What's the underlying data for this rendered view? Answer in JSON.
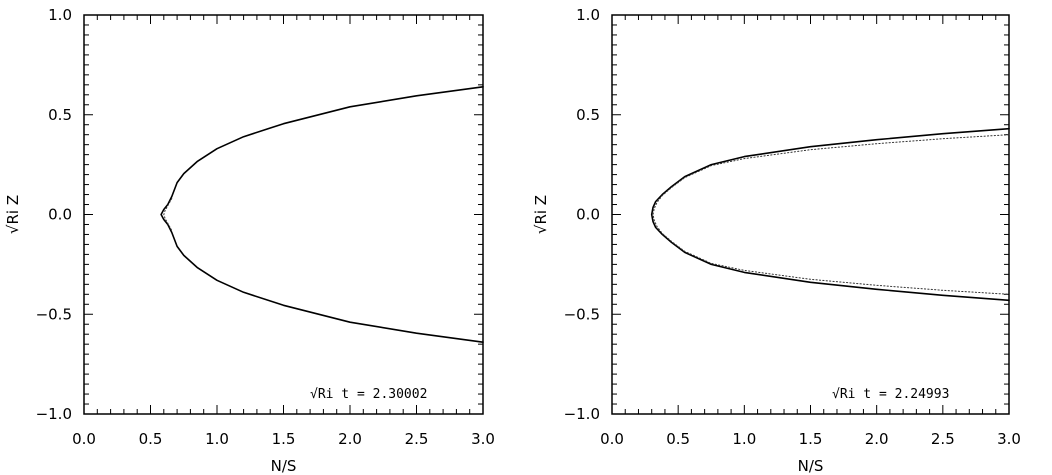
{
  "chart_data": [
    {
      "type": "line",
      "title": "",
      "xlabel": "N/S",
      "ylabel": "√Ri Z",
      "xlim": [
        0.0,
        3.0
      ],
      "ylim": [
        -1.0,
        1.0
      ],
      "xticks": [
        "0.0",
        "0.5",
        "1.0",
        "1.5",
        "2.0",
        "2.5",
        "3.0"
      ],
      "yticks": [
        "1.0",
        "0.5",
        "0.0",
        "−0.5",
        "−1.0"
      ],
      "grid": false,
      "annotation": "√Ri t = 2.30002",
      "series": [
        {
          "style": "solid",
          "x": [
            3.0,
            2.5,
            2.0,
            1.5,
            1.2,
            1.0,
            0.85,
            0.75,
            0.7,
            0.66,
            0.63,
            0.6,
            0.58,
            0.6,
            0.63,
            0.66,
            0.7,
            0.75,
            0.85,
            1.0,
            1.2,
            1.5,
            2.0,
            2.5,
            3.0
          ],
          "y": [
            0.64,
            0.595,
            0.54,
            0.455,
            0.39,
            0.33,
            0.265,
            0.205,
            0.16,
            0.09,
            0.05,
            0.025,
            0.0,
            -0.025,
            -0.05,
            -0.09,
            -0.16,
            -0.205,
            -0.265,
            -0.33,
            -0.39,
            -0.455,
            -0.54,
            -0.595,
            -0.64
          ]
        },
        {
          "style": "dotted",
          "x": [
            0.66,
            0.61,
            0.6,
            0.61,
            0.66
          ],
          "y": [
            0.08,
            0.02,
            0.0,
            -0.02,
            -0.08
          ]
        }
      ]
    },
    {
      "type": "line",
      "title": "",
      "xlabel": "N/S",
      "ylabel": "√Ri Z",
      "xlim": [
        0.0,
        3.0
      ],
      "ylim": [
        -1.0,
        1.0
      ],
      "xticks": [
        "0.0",
        "0.5",
        "1.0",
        "1.5",
        "2.0",
        "2.5",
        "3.0"
      ],
      "yticks": [
        "1.0",
        "0.5",
        "0.0",
        "−0.5",
        "−1.0"
      ],
      "grid": false,
      "annotation": "√Ri t = 2.24993",
      "series": [
        {
          "style": "solid",
          "x": [
            3.0,
            2.5,
            2.0,
            1.5,
            1.0,
            0.75,
            0.55,
            0.45,
            0.38,
            0.33,
            0.31,
            0.3,
            0.31,
            0.33,
            0.38,
            0.45,
            0.55,
            0.75,
            1.0,
            1.5,
            2.0,
            2.5,
            3.0
          ],
          "y": [
            0.43,
            0.405,
            0.375,
            0.34,
            0.29,
            0.25,
            0.19,
            0.14,
            0.1,
            0.065,
            0.035,
            0.0,
            -0.035,
            -0.065,
            -0.1,
            -0.14,
            -0.19,
            -0.25,
            -0.29,
            -0.34,
            -0.375,
            -0.405,
            -0.43
          ]
        },
        {
          "style": "dotted",
          "x": [
            3.0,
            2.5,
            2.0,
            1.5,
            1.0,
            0.75,
            0.55,
            0.45,
            0.38,
            0.34,
            0.32,
            0.31,
            0.32,
            0.34,
            0.38,
            0.45,
            0.55,
            0.75,
            1.0,
            1.5,
            2.0,
            2.5,
            3.0
          ],
          "y": [
            0.4,
            0.38,
            0.355,
            0.325,
            0.28,
            0.245,
            0.185,
            0.135,
            0.095,
            0.06,
            0.03,
            0.0,
            -0.03,
            -0.06,
            -0.095,
            -0.135,
            -0.185,
            -0.245,
            -0.28,
            -0.325,
            -0.355,
            -0.38,
            -0.4
          ]
        }
      ]
    }
  ]
}
